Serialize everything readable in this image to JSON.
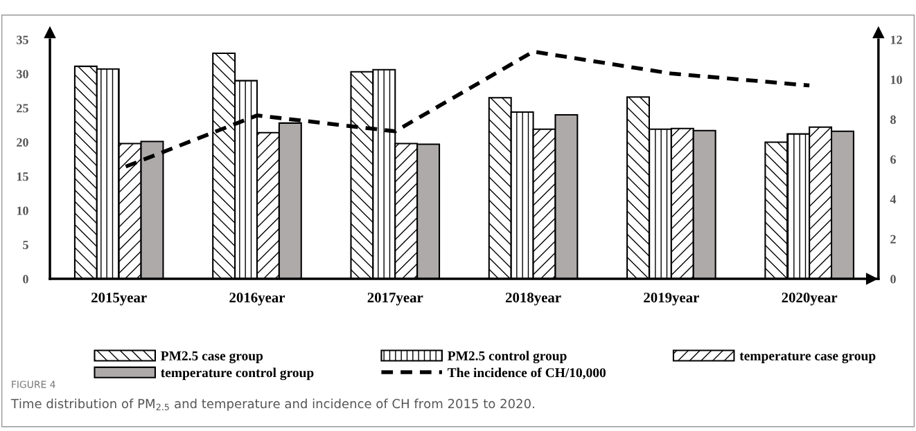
{
  "chart_data": {
    "type": "bar",
    "categories": [
      "2015year",
      "2016year",
      "2017year",
      "2018year",
      "2019year",
      "2020year"
    ],
    "series": [
      {
        "name": "PM2.5 case group",
        "color": "#000000",
        "values": [
          31.1,
          33.0,
          30.3,
          26.5,
          26.6,
          20.0
        ]
      },
      {
        "name": "PM2.5 control group",
        "color": "#000000",
        "values": [
          30.7,
          29.0,
          30.6,
          24.4,
          21.9,
          21.2
        ]
      },
      {
        "name": "temperature case group",
        "color": "#000000",
        "values": [
          19.8,
          21.4,
          19.8,
          21.9,
          22.0,
          22.2
        ]
      },
      {
        "name": "temperature control group",
        "color": "#aeaaaa",
        "values": [
          20.1,
          22.8,
          19.7,
          24.0,
          21.7,
          21.6
        ]
      },
      {
        "name": "The incidence of CH/10,000",
        "type": "line",
        "axis": "y2",
        "color": "#000000",
        "line_style": "dashed",
        "values": [
          5.5,
          8.2,
          7.4,
          11.4,
          10.3,
          9.7
        ]
      }
    ],
    "ylim": [
      0,
      35
    ],
    "yticks": [
      0,
      5,
      10,
      15,
      20,
      25,
      30,
      35
    ],
    "y2lim": [
      0,
      12
    ],
    "y2ticks": [
      0,
      2,
      4,
      6,
      8,
      10,
      12
    ],
    "grid": false,
    "legend": "bottom",
    "marker": "none",
    "annotations": [
      "FIGURE 4",
      "Time distribution of PM$_{2.5}$ and temperature and incidence of CH from 2015 to 2020."
    ]
  }
}
